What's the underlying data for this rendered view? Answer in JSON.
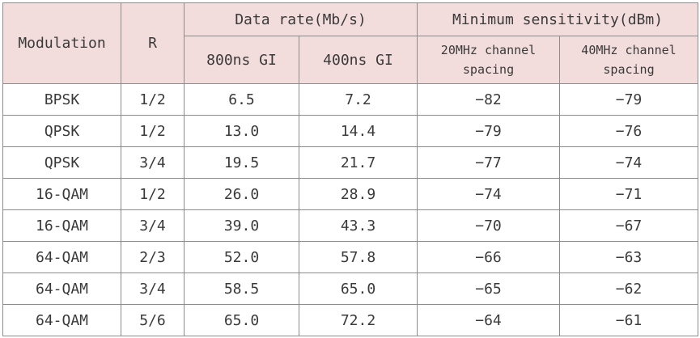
{
  "table": {
    "headers": {
      "modulation": "Modulation",
      "rate": "R",
      "data_rate": "Data rate(Mb/s)",
      "min_sensitivity": "Minimum sensitivity(dBm)",
      "gi_800": "800ns GI",
      "gi_400": "400ns GI",
      "ch20_line1": "20MHz channel",
      "ch20_line2": "spacing",
      "ch40_line1": "40MHz channel",
      "ch40_line2": "spacing"
    },
    "rows": [
      {
        "modulation": "BPSK",
        "r": "1/2",
        "rate_800": "6.5",
        "rate_400": "7.2",
        "sens_20": "−82",
        "sens_40": "−79"
      },
      {
        "modulation": "QPSK",
        "r": "1/2",
        "rate_800": "13.0",
        "rate_400": "14.4",
        "sens_20": "−79",
        "sens_40": "−76"
      },
      {
        "modulation": "QPSK",
        "r": "3/4",
        "rate_800": "19.5",
        "rate_400": "21.7",
        "sens_20": "−77",
        "sens_40": "−74"
      },
      {
        "modulation": "16-QAM",
        "r": "1/2",
        "rate_800": "26.0",
        "rate_400": "28.9",
        "sens_20": "−74",
        "sens_40": "−71"
      },
      {
        "modulation": "16-QAM",
        "r": "3/4",
        "rate_800": "39.0",
        "rate_400": "43.3",
        "sens_20": "−70",
        "sens_40": "−67"
      },
      {
        "modulation": "64-QAM",
        "r": "2/3",
        "rate_800": "52.0",
        "rate_400": "57.8",
        "sens_20": "−66",
        "sens_40": "−63"
      },
      {
        "modulation": "64-QAM",
        "r": "3/4",
        "rate_800": "58.5",
        "rate_400": "65.0",
        "sens_20": "−65",
        "sens_40": "−62"
      },
      {
        "modulation": "64-QAM",
        "r": "5/6",
        "rate_800": "65.0",
        "rate_400": "72.2",
        "sens_20": "−64",
        "sens_40": "−61"
      }
    ]
  }
}
